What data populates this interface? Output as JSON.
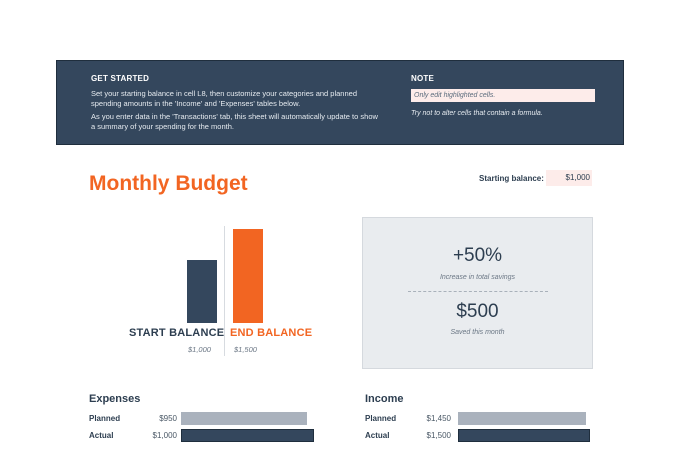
{
  "banner": {
    "get_started_heading": "GET STARTED",
    "get_started_p1": "Set your starting balance in cell L8, then customize your categories and planned spending amounts in the 'Income' and 'Expenses' tables below.",
    "get_started_p2": "As you enter data in the 'Transactions' tab, this sheet will automatically update to show a summary of your spending for the month.",
    "note_heading": "NOTE",
    "note_cell": "Only edit highlighted cells.",
    "note_sub": "Try not to alter cells that contain a formula."
  },
  "title": "Monthly Budget",
  "starting_balance": {
    "label": "Starting balance:",
    "value": "$1,000"
  },
  "balance_chart": {
    "start_label": "START BALANCE",
    "start_value": "$1,000",
    "end_label": "END BALANCE",
    "end_value": "$1,500"
  },
  "chart_data": {
    "type": "bar",
    "categories": [
      "START BALANCE",
      "END BALANCE"
    ],
    "values": [
      1000,
      1500
    ],
    "colors": [
      "#34475d",
      "#f26522"
    ]
  },
  "summary": {
    "savings_pct": "+50%",
    "savings_pct_caption": "Increase in total savings",
    "saved_amount": "$500",
    "saved_caption": "Saved this month"
  },
  "expenses": {
    "title": "Expenses",
    "planned_label": "Planned",
    "planned_value": "$950",
    "planned_amount": 950,
    "actual_label": "Actual",
    "actual_value": "$1,000",
    "actual_amount": 1000
  },
  "income": {
    "title": "Income",
    "planned_label": "Planned",
    "planned_value": "$1,450",
    "planned_amount": 1450,
    "actual_label": "Actual",
    "actual_value": "$1,500",
    "actual_amount": 1500
  },
  "colors": {
    "navy": "#34475d",
    "orange": "#f26522",
    "planned_bar": "#aab2bd",
    "highlight": "#fdecea"
  }
}
